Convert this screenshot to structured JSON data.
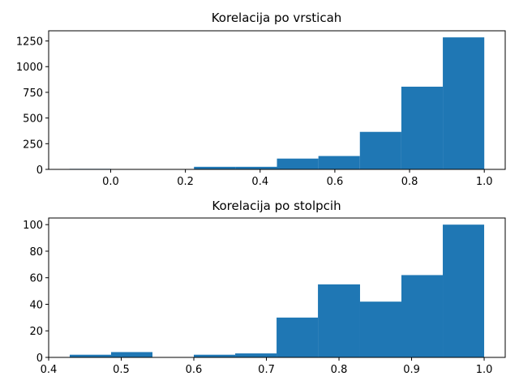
{
  "figure": {
    "background": "#ffffff",
    "bar_color": "#1f77b4"
  },
  "chart_data": [
    {
      "type": "bar",
      "subtype": "histogram",
      "title": "Korelacija po vrsticah",
      "xlabel": "",
      "ylabel": "",
      "bin_edges": [
        -0.11,
        0.001,
        0.112,
        0.223,
        0.334,
        0.445,
        0.556,
        0.667,
        0.778,
        0.889,
        1.0
      ],
      "values": [
        5,
        3,
        3,
        25,
        25,
        105,
        130,
        365,
        805,
        1285
      ],
      "xlim": [
        -0.166,
        1.056
      ],
      "ylim": [
        0,
        1349
      ],
      "xticks": [
        0.0,
        0.2,
        0.4,
        0.6,
        0.8,
        1.0
      ],
      "xtick_labels": [
        "0.0",
        "0.2",
        "0.4",
        "0.6",
        "0.8",
        "1.0"
      ],
      "yticks": [
        0,
        250,
        500,
        750,
        1000,
        1250
      ],
      "ytick_labels": [
        "0",
        "250",
        "500",
        "750",
        "1000",
        "1250"
      ],
      "grid": false
    },
    {
      "type": "bar",
      "subtype": "histogram",
      "title": "Korelacija po stolpcih",
      "xlabel": "",
      "ylabel": "",
      "bin_edges": [
        0.429,
        0.486,
        0.543,
        0.6,
        0.657,
        0.714,
        0.771,
        0.829,
        0.886,
        0.943,
        1.0
      ],
      "values": [
        2,
        4,
        0,
        2,
        3,
        30,
        55,
        42,
        62,
        100
      ],
      "xlim": [
        0.4,
        1.029
      ],
      "ylim": [
        0,
        105
      ],
      "xticks": [
        0.4,
        0.5,
        0.6,
        0.7,
        0.8,
        0.9,
        1.0
      ],
      "xtick_labels": [
        "0.4",
        "0.5",
        "0.6",
        "0.7",
        "0.8",
        "0.9",
        "1.0"
      ],
      "yticks": [
        0,
        20,
        40,
        60,
        80,
        100
      ],
      "ytick_labels": [
        "0",
        "20",
        "40",
        "60",
        "80",
        "100"
      ],
      "grid": false
    }
  ]
}
